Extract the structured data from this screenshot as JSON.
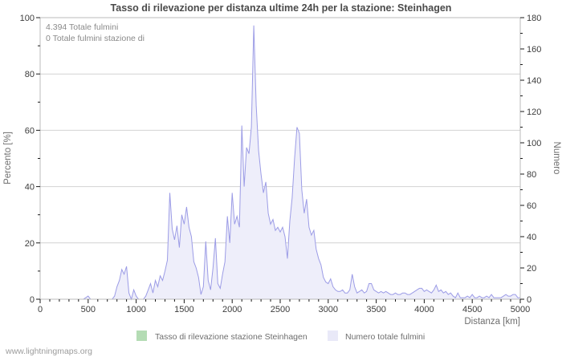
{
  "watermark": "www.lightningmaps.org",
  "colors": {
    "background": "#ffffff",
    "plot_border": "#bbbbbb",
    "gridline": "#d2d2d2",
    "tick": "#1a1a1a",
    "curve_line": "#9c9ce6",
    "curve_fill": "#eeeefa",
    "legend_green": "#b4dcb4",
    "legend_lavender": "#e9e9f8"
  },
  "chart_data": {
    "type": "area",
    "title": "Tasso di rilevazione per distanza ultime 24h per la stazione: Steinhagen",
    "xlabel": "Distanza  [km]",
    "ylabel_left": "Percento  [%]",
    "ylabel_right": "Numero",
    "xlim": [
      0,
      5000
    ],
    "ylim_left": [
      0,
      100
    ],
    "ylim_right": [
      0,
      180
    ],
    "x_ticks": [
      0,
      500,
      1000,
      1500,
      2000,
      2500,
      3000,
      3500,
      4000,
      4500,
      5000
    ],
    "x_minor_step": 100,
    "y_left_ticks": [
      0,
      20,
      40,
      60,
      80,
      100
    ],
    "y_left_minor_step": 10,
    "y_right_ticks": [
      0,
      20,
      40,
      60,
      80,
      100,
      120,
      140,
      160,
      180
    ],
    "y_right_minor_step": 10,
    "grid_left_values": [
      20,
      40,
      60,
      80
    ],
    "grid_on": true,
    "legend_position": "bottom",
    "annotations": [
      "4.394 Totale fulmini",
      "0 Totale fulmini stazione di"
    ],
    "legend": [
      {
        "label": "Tasso di rilevazione stazione Steinhagen",
        "color": "#b4dcb4"
      },
      {
        "label": "Numero totale fulmini",
        "color": "#e9e9f8"
      }
    ],
    "series": [
      {
        "name": "Tasso di rilevazione stazione Steinhagen",
        "axis": "left",
        "color": "#b4dcb4",
        "constant_value": 0,
        "note": "station reported 0 fulmini, series is flat at 0 and not visible"
      },
      {
        "name": "Numero totale fulmini",
        "axis": "right",
        "line_color": "#9c9ce6",
        "fill_color": "#eeeefa",
        "x_start": 0,
        "x_step": 25,
        "values": [
          0,
          0,
          0,
          0,
          0,
          0,
          0,
          0,
          0,
          0,
          0,
          0,
          0,
          0,
          0,
          0,
          0,
          0,
          0,
          1,
          2,
          0,
          0,
          0,
          0,
          0,
          0,
          0,
          0,
          0,
          0,
          2,
          8,
          12,
          19,
          16,
          21,
          4,
          0,
          6,
          2,
          0,
          0,
          0,
          2,
          6,
          10,
          4,
          12,
          8,
          15,
          12,
          18,
          25,
          68,
          45,
          38,
          47,
          33,
          54,
          48,
          59,
          46,
          40,
          24,
          20,
          14,
          3,
          8,
          37,
          12,
          6,
          20,
          39,
          10,
          7,
          16,
          24,
          53,
          36,
          68,
          48,
          53,
          46,
          111,
          72,
          97,
          93,
          110,
          175,
          124,
          95,
          80,
          68,
          75,
          55,
          48,
          51,
          44,
          46,
          43,
          46,
          40,
          26,
          50,
          65,
          90,
          110,
          106,
          70,
          55,
          64,
          46,
          41,
          44,
          32,
          26,
          22,
          14,
          11,
          10,
          13,
          8,
          6,
          5,
          5,
          6,
          4,
          4,
          6,
          16,
          8,
          4,
          5,
          6,
          4,
          5,
          10,
          10,
          6,
          5,
          4,
          5,
          4,
          5,
          4,
          3,
          3,
          4,
          3,
          3,
          4,
          4,
          3,
          3,
          4,
          5,
          6,
          7,
          7,
          5,
          6,
          5,
          4,
          6,
          9,
          5,
          6,
          4,
          5,
          3,
          4,
          2,
          1,
          4,
          1,
          1,
          1,
          2,
          1,
          3,
          1,
          1,
          2,
          1,
          1,
          2,
          1,
          3,
          1,
          1,
          1,
          1,
          2,
          3,
          2,
          2,
          3,
          3,
          1,
          1
        ]
      }
    ]
  }
}
